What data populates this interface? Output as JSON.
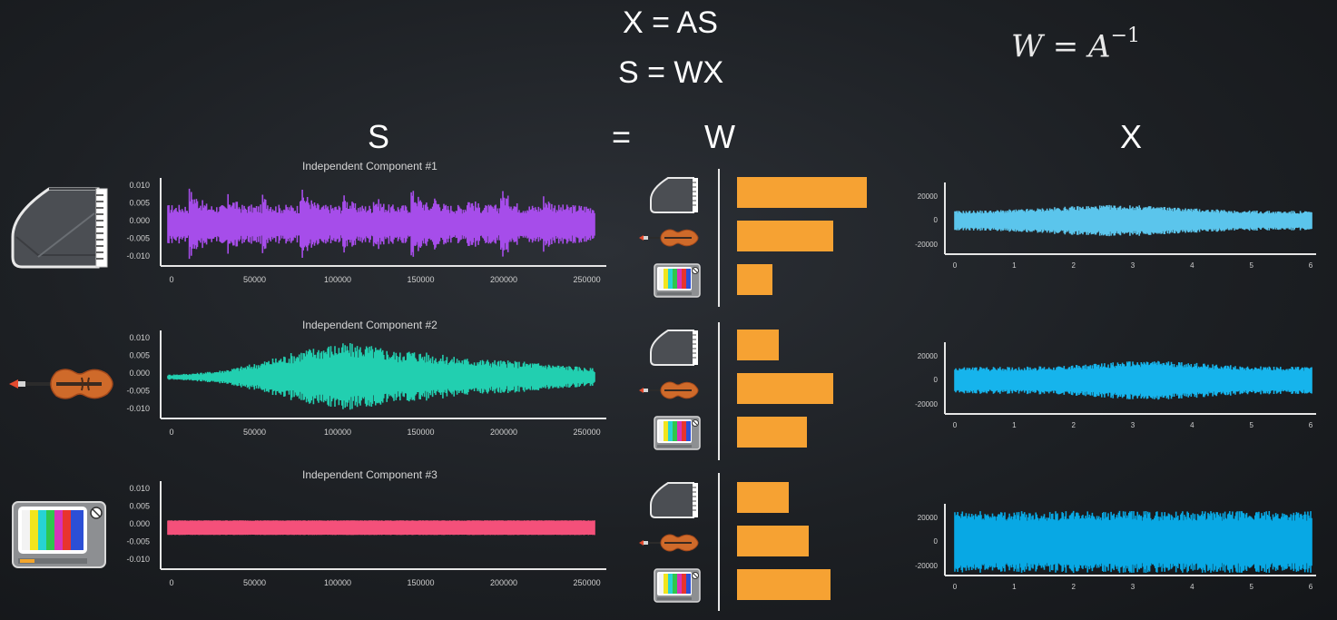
{
  "equations": {
    "line1": "X = AS",
    "line2": "S = WX",
    "inverse_lhs": "W = A",
    "inverse_exp": "−1"
  },
  "headers": {
    "s": "S",
    "equals": "=",
    "w": "W",
    "x": "X"
  },
  "components": [
    {
      "title": "Independent Component #1",
      "instrument": "piano",
      "color": "#a64dea",
      "y_ticks": [
        "0.010",
        "0.005",
        "0.000",
        "-0.005",
        "-0.010"
      ],
      "x_ticks": [
        "0",
        "50000",
        "100000",
        "150000",
        "200000",
        "250000"
      ]
    },
    {
      "title": "Independent Component #2",
      "instrument": "violin",
      "color": "#22cfb0",
      "y_ticks": [
        "0.010",
        "0.005",
        "0.000",
        "-0.005",
        "-0.010"
      ],
      "x_ticks": [
        "0",
        "50000",
        "100000",
        "150000",
        "200000",
        "250000"
      ]
    },
    {
      "title": "Independent Component #3",
      "instrument": "tv-noise",
      "color": "#f4507a",
      "y_ticks": [
        "0.010",
        "0.005",
        "0.000",
        "-0.005",
        "-0.010"
      ],
      "x_ticks": [
        "0",
        "50000",
        "100000",
        "150000",
        "200000",
        "250000"
      ]
    }
  ],
  "weights": [
    {
      "instruments": [
        "piano",
        "violin",
        "tv-noise"
      ],
      "values": [
        1.0,
        0.74,
        0.27
      ]
    },
    {
      "instruments": [
        "piano",
        "violin",
        "tv-noise"
      ],
      "values": [
        0.32,
        0.74,
        0.54
      ]
    },
    {
      "instruments": [
        "piano",
        "violin",
        "tv-noise"
      ],
      "values": [
        0.4,
        0.55,
        0.72
      ]
    }
  ],
  "mixtures": [
    {
      "color": "#5bc5ec",
      "y_ticks": [
        "20000",
        "0",
        "-20000"
      ],
      "x_ticks": [
        "0",
        "1",
        "2",
        "3",
        "4",
        "5",
        "6"
      ]
    },
    {
      "color": "#16b4ec",
      "y_ticks": [
        "20000",
        "0",
        "-20000"
      ],
      "x_ticks": [
        "0",
        "1",
        "2",
        "3",
        "4",
        "5",
        "6"
      ]
    },
    {
      "color": "#08a8e4",
      "y_ticks": [
        "20000",
        "0",
        "-20000"
      ],
      "x_ticks": [
        "0",
        "1",
        "2",
        "3",
        "4",
        "5",
        "6"
      ]
    }
  ],
  "colors": {
    "weight_bar": "#f6a233",
    "axis": "#e6e6e6",
    "tick_text": "#d0d0d0"
  }
}
